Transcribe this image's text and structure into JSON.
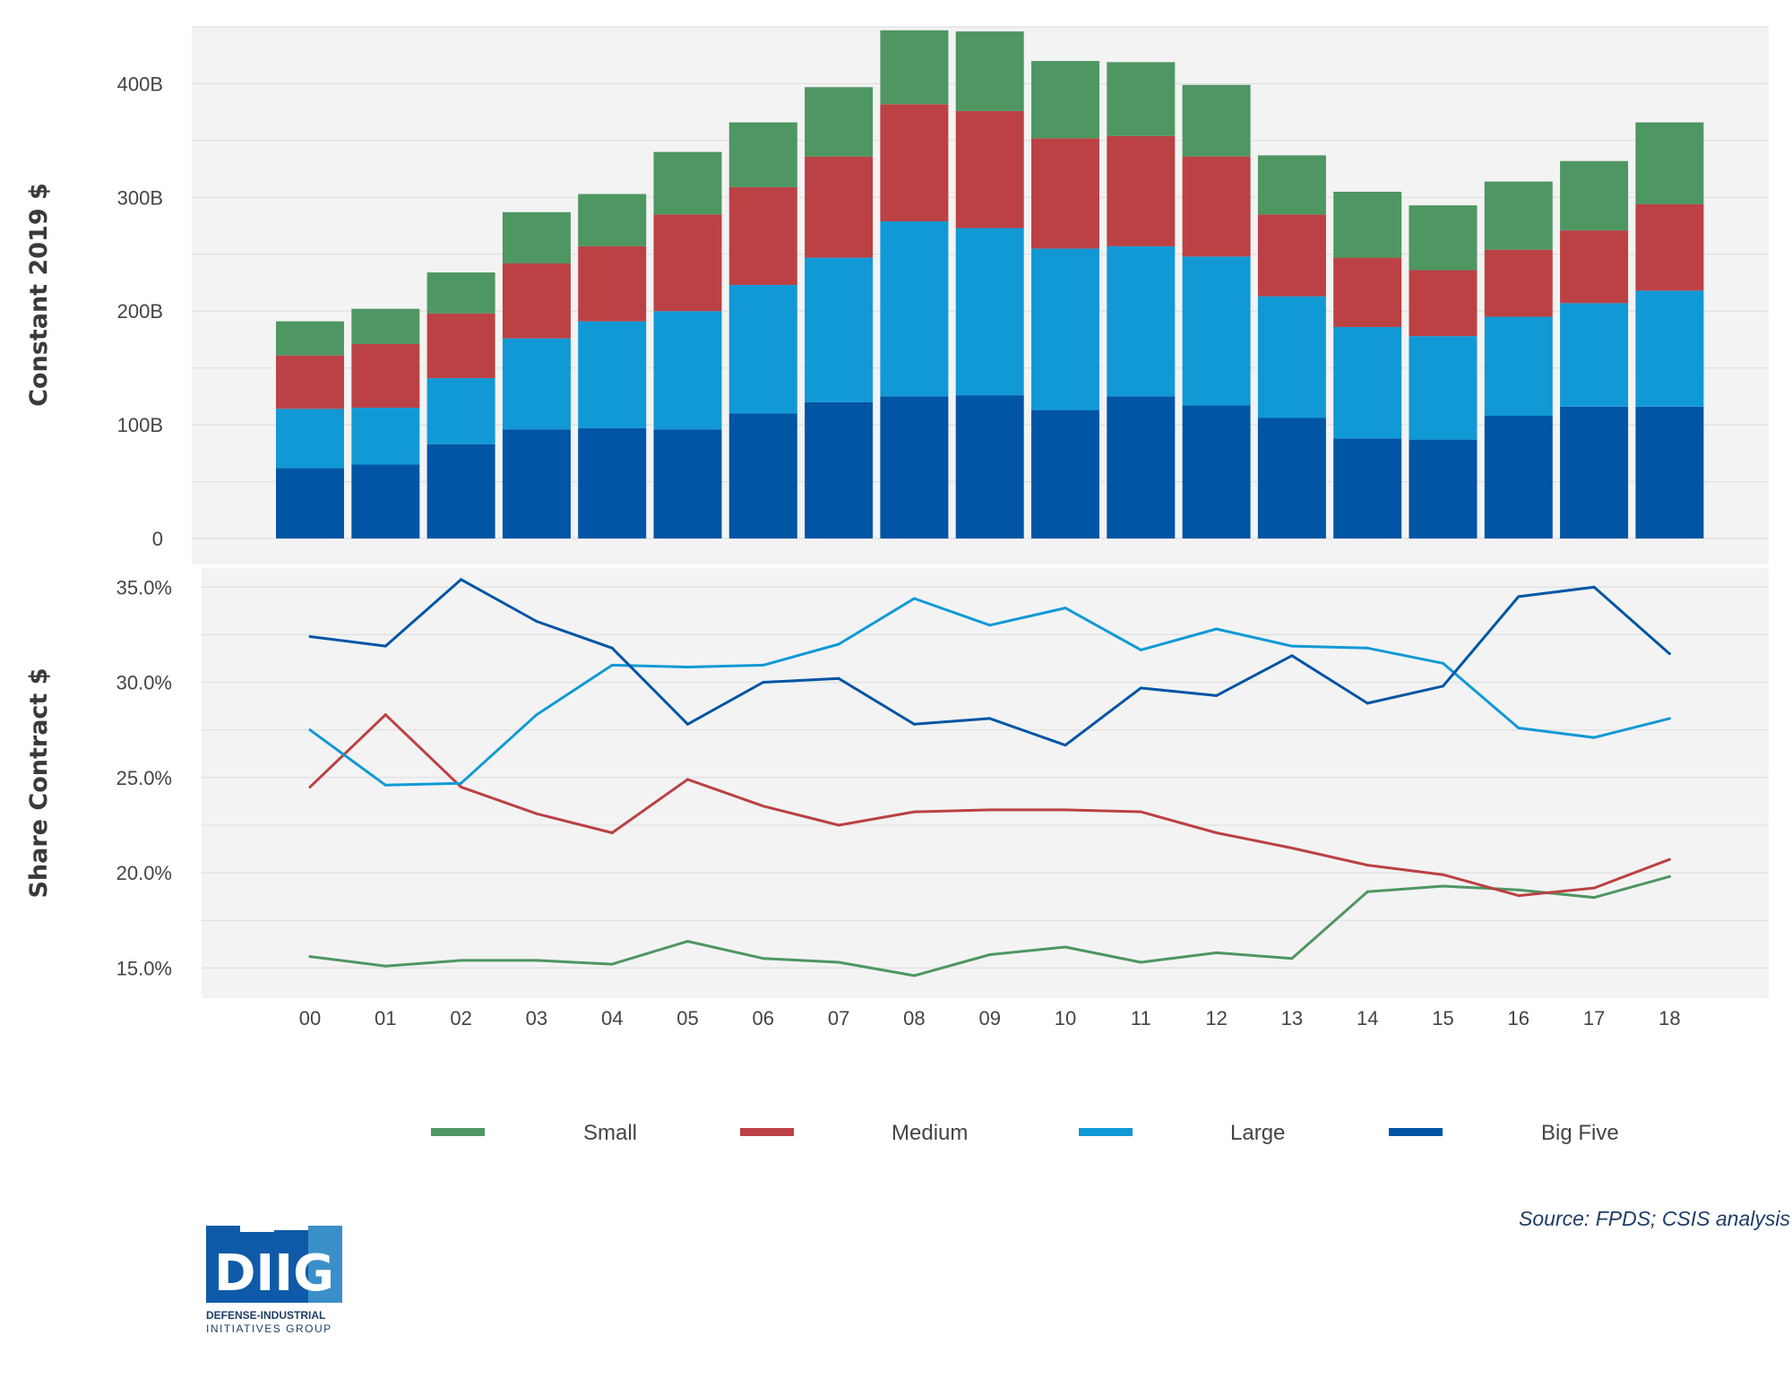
{
  "chart_data": [
    {
      "type": "bar",
      "stacked": true,
      "categories": [
        "00",
        "01",
        "02",
        "03",
        "04",
        "05",
        "06",
        "07",
        "08",
        "09",
        "10",
        "11",
        "12",
        "13",
        "14",
        "15",
        "16",
        "17",
        "18"
      ],
      "ylabel": "Constant 2019 $",
      "ylim": [
        0,
        450
      ],
      "yticks": [
        "0",
        "100B",
        "200B",
        "300B",
        "400B"
      ],
      "series": [
        {
          "name": "Big Five",
          "color": "#0055a4",
          "values": [
            62,
            65,
            83,
            96,
            97,
            96,
            110,
            120,
            125,
            126,
            113,
            125,
            117,
            106,
            88,
            87,
            108,
            116,
            116
          ]
        },
        {
          "name": "Large",
          "color": "#1199d6",
          "values": [
            52,
            50,
            58,
            80,
            94,
            104,
            113,
            127,
            154,
            147,
            142,
            132,
            131,
            107,
            98,
            91,
            87,
            91,
            102
          ]
        },
        {
          "name": "Medium",
          "color": "#bb4144",
          "values": [
            47,
            56,
            57,
            66,
            66,
            85,
            86,
            89,
            103,
            103,
            97,
            97,
            88,
            72,
            61,
            58,
            59,
            64,
            76
          ]
        },
        {
          "name": "Small",
          "color": "#4e9662",
          "values": [
            30,
            31,
            36,
            45,
            46,
            55,
            57,
            61,
            65,
            70,
            68,
            65,
            63,
            52,
            58,
            57,
            60,
            61,
            72
          ]
        }
      ]
    },
    {
      "type": "line",
      "categories": [
        "00",
        "01",
        "02",
        "03",
        "04",
        "05",
        "06",
        "07",
        "08",
        "09",
        "10",
        "11",
        "12",
        "13",
        "14",
        "15",
        "16",
        "17",
        "18"
      ],
      "ylabel": "Share Contract $",
      "ylim": [
        13.7,
        36.0
      ],
      "yticks": [
        "15.0%",
        "20.0%",
        "25.0%",
        "30.0%",
        "35.0%"
      ],
      "series": [
        {
          "name": "Small",
          "color": "#4e9662",
          "values": [
            15.6,
            15.1,
            15.4,
            15.4,
            15.2,
            16.4,
            15.5,
            15.3,
            14.6,
            15.7,
            16.1,
            15.3,
            15.8,
            15.5,
            19.0,
            19.3,
            19.1,
            18.7,
            19.8
          ]
        },
        {
          "name": "Medium",
          "color": "#bb4144",
          "values": [
            24.5,
            28.3,
            24.5,
            23.1,
            22.1,
            24.9,
            23.5,
            22.5,
            23.2,
            23.3,
            23.3,
            23.2,
            22.1,
            21.3,
            20.4,
            19.9,
            18.8,
            19.2,
            20.7
          ]
        },
        {
          "name": "Large",
          "color": "#1199d6",
          "values": [
            27.5,
            24.6,
            24.7,
            28.3,
            30.9,
            30.8,
            30.9,
            32.0,
            34.4,
            33.0,
            33.9,
            31.7,
            32.8,
            31.9,
            31.8,
            31.0,
            27.6,
            27.1,
            28.1
          ]
        },
        {
          "name": "Big Five",
          "color": "#0055a4",
          "values": [
            32.4,
            31.9,
            35.4,
            33.2,
            31.8,
            27.8,
            30.0,
            30.2,
            27.8,
            28.1,
            26.7,
            29.7,
            29.3,
            31.4,
            28.9,
            29.8,
            34.5,
            35.0,
            31.5
          ]
        }
      ]
    }
  ],
  "legend": [
    {
      "label": "Small",
      "color": "#4e9662"
    },
    {
      "label": "Medium",
      "color": "#bb4144"
    },
    {
      "label": "Large",
      "color": "#1199d6"
    },
    {
      "label": "Big Five",
      "color": "#0055a4"
    }
  ],
  "source": "Source: FPDS; CSIS analysis",
  "logo": {
    "mark": "DIIG",
    "line1": "DEFENSE-INDUSTRIAL",
    "line2": "INITIATIVES GROUP"
  }
}
